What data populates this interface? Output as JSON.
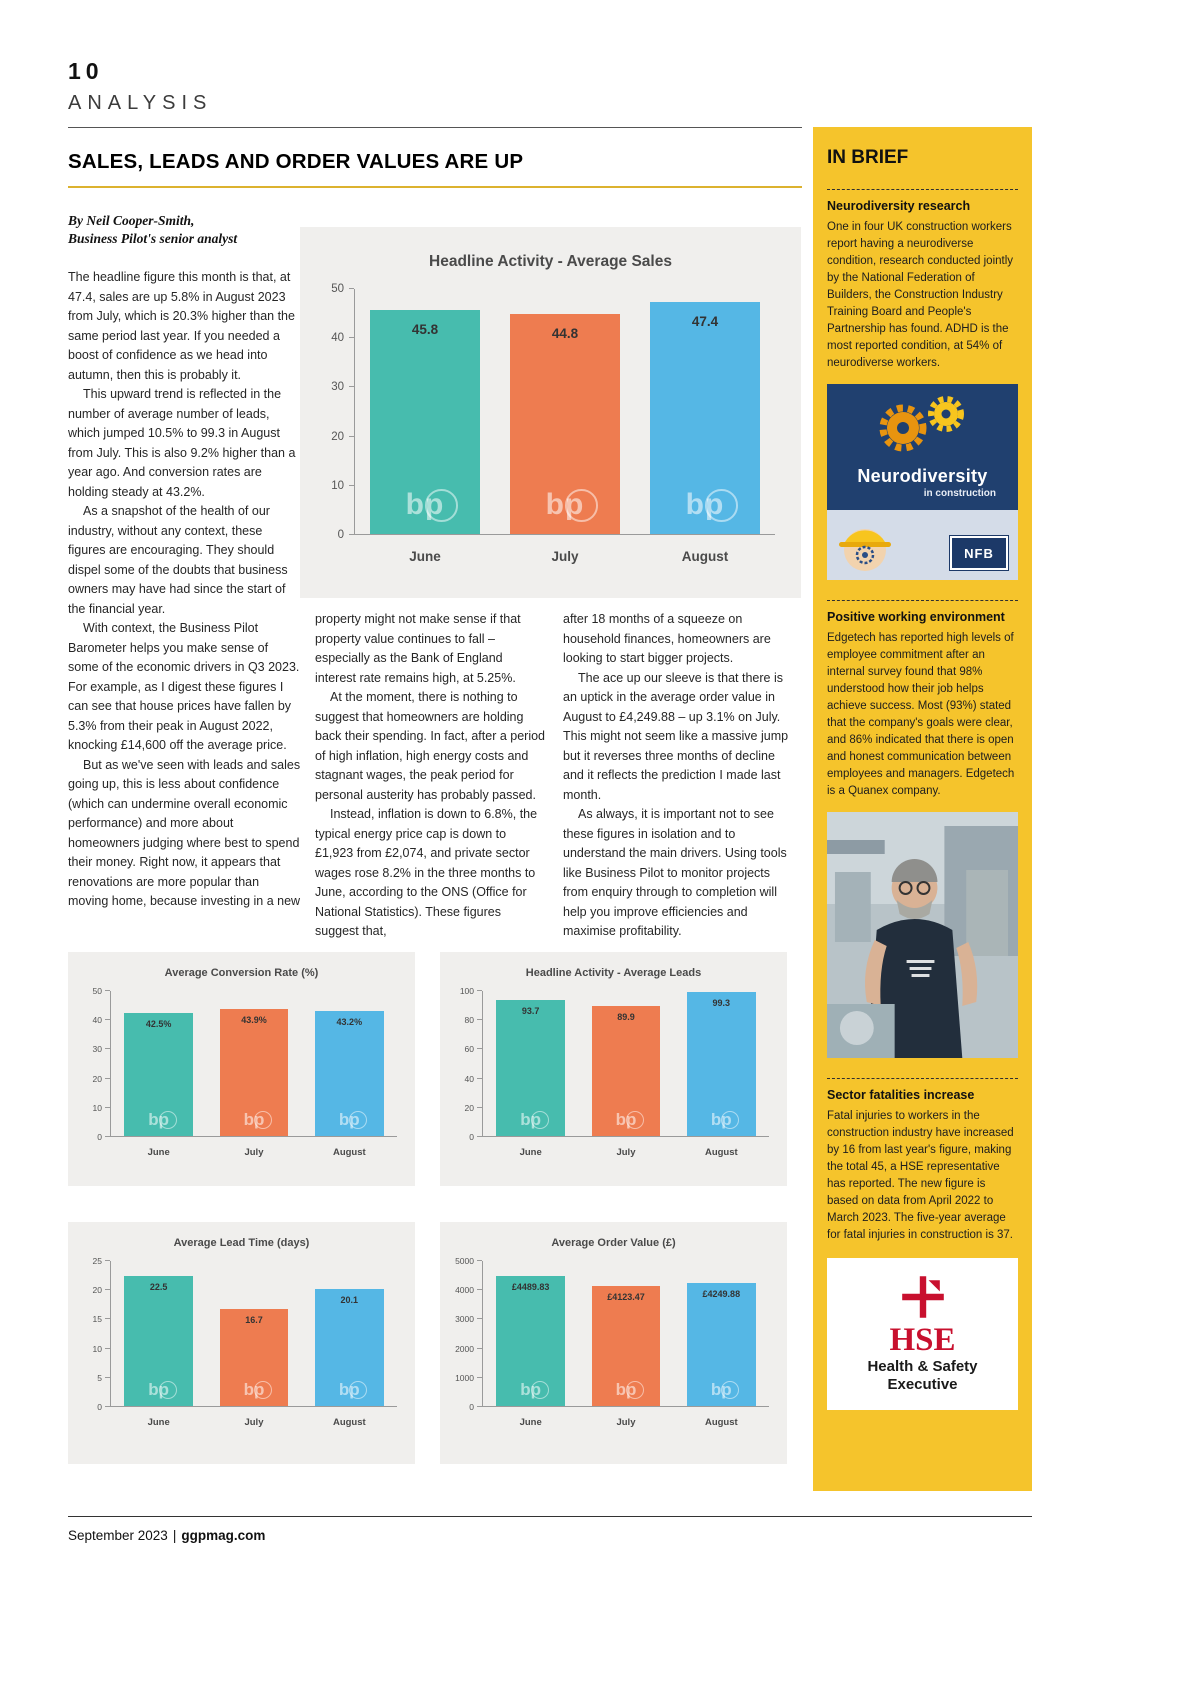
{
  "page": {
    "number": "10",
    "section": "ANALYSIS",
    "footer": {
      "date": "September 2023",
      "separator": "|",
      "site": "ggpmag.com"
    }
  },
  "article": {
    "title": "SALES, LEADS AND ORDER VALUES ARE UP",
    "byline_line1": "By Neil Cooper-Smith,",
    "byline_line2": "Business Pilot's senior analyst",
    "col1": [
      "The headline figure this month is that, at 47.4, sales are up 5.8% in August 2023 from July, which is 20.3% higher than the same period last year. If you needed a boost of confidence as we head into autumn, then this is probably it.",
      "This upward trend is reflected in the number of average number of leads, which jumped 10.5% to 99.3 in August from July. This is also 9.2% higher than a year ago. And conversion rates are holding steady at 43.2%.",
      "As a snapshot of the health of our industry, without any context, these figures are encouraging. They should dispel some of the doubts that business owners may have had since the start of the financial year.",
      "With context, the Business Pilot Barometer helps you make sense of some of the economic drivers in Q3 2023. For example, as I digest these figures I can see that house prices have fallen by 5.3% from their peak in August 2022, knocking £14,600 off the average price.",
      "But as we've seen with leads and sales going up, this is less about confidence (which can undermine overall economic performance) and more about homeowners judging where best to spend their money. Right now, it appears that renovations are more popular than moving home, because investing in a new"
    ],
    "col2": [
      "property might not make sense if that property value continues to fall – especially as the Bank of England interest rate remains high, at 5.25%.",
      "At the moment, there is nothing to suggest that homeowners are holding back their spending. In fact, after a period of high inflation, high energy costs and stagnant wages, the peak period for personal austerity has probably passed.",
      "Instead, inflation is down to 6.8%, the typical energy price cap is down to £1,923 from £2,074, and private sector wages rose 8.2% in the three months to June, according to the ONS (Office for National Statistics). These figures suggest that,"
    ],
    "col3": [
      "after 18 months of a squeeze on household finances, homeowners are looking to start bigger projects.",
      "The ace up our sleeve is that there is an uptick in the average order value in August to £4,249.88 – up 3.1% on July. This might not seem like a massive jump but it reverses three months of decline and it reflects the prediction I made last month.",
      "As always, it is important not to see these figures in isolation and to understand the main drivers. Using tools like Business Pilot to monitor projects from enquiry through to completion will help you improve efficiencies and maximise profitability."
    ]
  },
  "charts_watermark": "bp",
  "bar_colors": [
    "#47bcae",
    "#ee7c50",
    "#55b7e5"
  ],
  "chart_data": [
    {
      "type": "bar",
      "title": "Headline Activity - Average Sales",
      "categories": [
        "June",
        "July",
        "August"
      ],
      "values": [
        45.8,
        44.8,
        47.4
      ],
      "labels": [
        "45.8",
        "44.8",
        "47.4"
      ],
      "ylim": [
        0,
        50
      ],
      "yticks": [
        0,
        10,
        20,
        30,
        40,
        50
      ],
      "xlabel": "",
      "ylabel": "",
      "grid": false,
      "legend": "none"
    },
    {
      "type": "bar",
      "title": "Average Conversion Rate (%)",
      "categories": [
        "June",
        "July",
        "August"
      ],
      "values": [
        42.5,
        43.9,
        43.2
      ],
      "labels": [
        "42.5%",
        "43.9%",
        "43.2%"
      ],
      "ylim": [
        0,
        50
      ],
      "yticks": [
        0,
        10,
        20,
        30,
        40,
        50
      ],
      "grid": false,
      "legend": "none"
    },
    {
      "type": "bar",
      "title": "Headline Activity - Average Leads",
      "categories": [
        "June",
        "July",
        "August"
      ],
      "values": [
        93.7,
        89.9,
        99.3
      ],
      "labels": [
        "93.7",
        "89.9",
        "99.3"
      ],
      "ylim": [
        0,
        100
      ],
      "yticks": [
        0,
        20,
        40,
        60,
        80,
        100
      ],
      "grid": false,
      "legend": "none"
    },
    {
      "type": "bar",
      "title": "Average Lead Time (days)",
      "categories": [
        "June",
        "July",
        "August"
      ],
      "values": [
        22.5,
        16.7,
        20.1
      ],
      "labels": [
        "22.5",
        "16.7",
        "20.1"
      ],
      "ylim": [
        0,
        25
      ],
      "yticks": [
        0,
        5,
        10,
        15,
        20,
        25
      ],
      "grid": false,
      "legend": "none"
    },
    {
      "type": "bar",
      "title": "Average Order Value (£)",
      "categories": [
        "June",
        "July",
        "August"
      ],
      "values": [
        4489.83,
        4123.47,
        4249.88
      ],
      "labels": [
        "£4489.83",
        "£4123.47",
        "£4249.88"
      ],
      "ylim": [
        0,
        5000
      ],
      "yticks": [
        0,
        1000,
        2000,
        3000,
        4000,
        5000
      ],
      "grid": false,
      "legend": "none"
    }
  ],
  "sidebar": {
    "title": "IN BRIEF",
    "sections": [
      {
        "heading": "Neurodiversity research",
        "body": "One in four UK construction workers report having a neurodiverse condition, research conducted jointly by the National Federation of Builders, the Construction Industry Training Board and People's Partnership has found. ADHD is the most reported condition, at 54% of neurodiverse workers."
      },
      {
        "heading": "Positive working environment",
        "body": "Edgetech has reported high levels of employee commitment after an internal survey found that 98% understood how their job helps achieve success. Most (93%) stated that the company's goals were clear, and 86% indicated that there is open and honest communication between employees and managers. Edgetech is a Quanex company."
      },
      {
        "heading": "Sector fatalities increase",
        "body": "Fatal injuries to workers in the construction industry have increased by 16 from last year's figure, making the total 45, a HSE representative has reported. The new figure is based on data from April 2022 to March 2023. The five-year average for fatal injuries in construction is 37."
      }
    ],
    "neuro_image": {
      "title": "Neurodiversity",
      "subtitle": "in construction",
      "badge": "NFB"
    },
    "hse_logo": {
      "abbr": "HSE",
      "line1": "Health & Safety",
      "line2": "Executive"
    }
  },
  "colors": {
    "accent": "#f5c42c",
    "teal_bar": "#47bcae",
    "orange_bar": "#ee7c50",
    "blue_bar": "#55b7e5",
    "hse_red": "#c8102e",
    "navy": "#20406f"
  }
}
